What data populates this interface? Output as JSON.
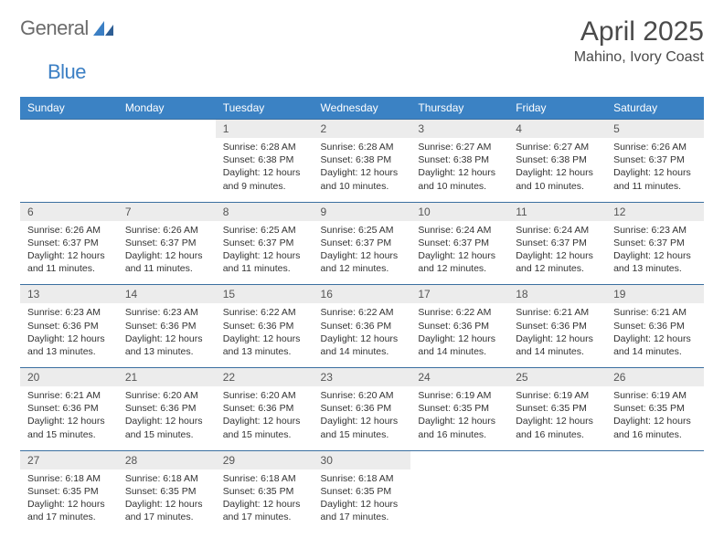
{
  "brand": {
    "general": "General",
    "blue": "Blue"
  },
  "title": "April 2025",
  "location": "Mahino, Ivory Coast",
  "colors": {
    "header_bg": "#3b82c4",
    "header_text": "#ffffff",
    "daynum_bg": "#ececec",
    "row_border": "#3b6fa0",
    "logo_gray": "#6b6b6b",
    "logo_blue": "#3b7fc4"
  },
  "weekdays": [
    "Sunday",
    "Monday",
    "Tuesday",
    "Wednesday",
    "Thursday",
    "Friday",
    "Saturday"
  ],
  "weeks": [
    [
      null,
      null,
      {
        "d": "1",
        "sr": "6:28 AM",
        "ss": "6:38 PM",
        "dl": "12 hours and 9 minutes."
      },
      {
        "d": "2",
        "sr": "6:28 AM",
        "ss": "6:38 PM",
        "dl": "12 hours and 10 minutes."
      },
      {
        "d": "3",
        "sr": "6:27 AM",
        "ss": "6:38 PM",
        "dl": "12 hours and 10 minutes."
      },
      {
        "d": "4",
        "sr": "6:27 AM",
        "ss": "6:38 PM",
        "dl": "12 hours and 10 minutes."
      },
      {
        "d": "5",
        "sr": "6:26 AM",
        "ss": "6:37 PM",
        "dl": "12 hours and 11 minutes."
      }
    ],
    [
      {
        "d": "6",
        "sr": "6:26 AM",
        "ss": "6:37 PM",
        "dl": "12 hours and 11 minutes."
      },
      {
        "d": "7",
        "sr": "6:26 AM",
        "ss": "6:37 PM",
        "dl": "12 hours and 11 minutes."
      },
      {
        "d": "8",
        "sr": "6:25 AM",
        "ss": "6:37 PM",
        "dl": "12 hours and 11 minutes."
      },
      {
        "d": "9",
        "sr": "6:25 AM",
        "ss": "6:37 PM",
        "dl": "12 hours and 12 minutes."
      },
      {
        "d": "10",
        "sr": "6:24 AM",
        "ss": "6:37 PM",
        "dl": "12 hours and 12 minutes."
      },
      {
        "d": "11",
        "sr": "6:24 AM",
        "ss": "6:37 PM",
        "dl": "12 hours and 12 minutes."
      },
      {
        "d": "12",
        "sr": "6:23 AM",
        "ss": "6:37 PM",
        "dl": "12 hours and 13 minutes."
      }
    ],
    [
      {
        "d": "13",
        "sr": "6:23 AM",
        "ss": "6:36 PM",
        "dl": "12 hours and 13 minutes."
      },
      {
        "d": "14",
        "sr": "6:23 AM",
        "ss": "6:36 PM",
        "dl": "12 hours and 13 minutes."
      },
      {
        "d": "15",
        "sr": "6:22 AM",
        "ss": "6:36 PM",
        "dl": "12 hours and 13 minutes."
      },
      {
        "d": "16",
        "sr": "6:22 AM",
        "ss": "6:36 PM",
        "dl": "12 hours and 14 minutes."
      },
      {
        "d": "17",
        "sr": "6:22 AM",
        "ss": "6:36 PM",
        "dl": "12 hours and 14 minutes."
      },
      {
        "d": "18",
        "sr": "6:21 AM",
        "ss": "6:36 PM",
        "dl": "12 hours and 14 minutes."
      },
      {
        "d": "19",
        "sr": "6:21 AM",
        "ss": "6:36 PM",
        "dl": "12 hours and 14 minutes."
      }
    ],
    [
      {
        "d": "20",
        "sr": "6:21 AM",
        "ss": "6:36 PM",
        "dl": "12 hours and 15 minutes."
      },
      {
        "d": "21",
        "sr": "6:20 AM",
        "ss": "6:36 PM",
        "dl": "12 hours and 15 minutes."
      },
      {
        "d": "22",
        "sr": "6:20 AM",
        "ss": "6:36 PM",
        "dl": "12 hours and 15 minutes."
      },
      {
        "d": "23",
        "sr": "6:20 AM",
        "ss": "6:36 PM",
        "dl": "12 hours and 15 minutes."
      },
      {
        "d": "24",
        "sr": "6:19 AM",
        "ss": "6:35 PM",
        "dl": "12 hours and 16 minutes."
      },
      {
        "d": "25",
        "sr": "6:19 AM",
        "ss": "6:35 PM",
        "dl": "12 hours and 16 minutes."
      },
      {
        "d": "26",
        "sr": "6:19 AM",
        "ss": "6:35 PM",
        "dl": "12 hours and 16 minutes."
      }
    ],
    [
      {
        "d": "27",
        "sr": "6:18 AM",
        "ss": "6:35 PM",
        "dl": "12 hours and 17 minutes."
      },
      {
        "d": "28",
        "sr": "6:18 AM",
        "ss": "6:35 PM",
        "dl": "12 hours and 17 minutes."
      },
      {
        "d": "29",
        "sr": "6:18 AM",
        "ss": "6:35 PM",
        "dl": "12 hours and 17 minutes."
      },
      {
        "d": "30",
        "sr": "6:18 AM",
        "ss": "6:35 PM",
        "dl": "12 hours and 17 minutes."
      },
      null,
      null,
      null
    ]
  ],
  "labels": {
    "sunrise": "Sunrise: ",
    "sunset": "Sunset: ",
    "daylight": "Daylight: "
  }
}
